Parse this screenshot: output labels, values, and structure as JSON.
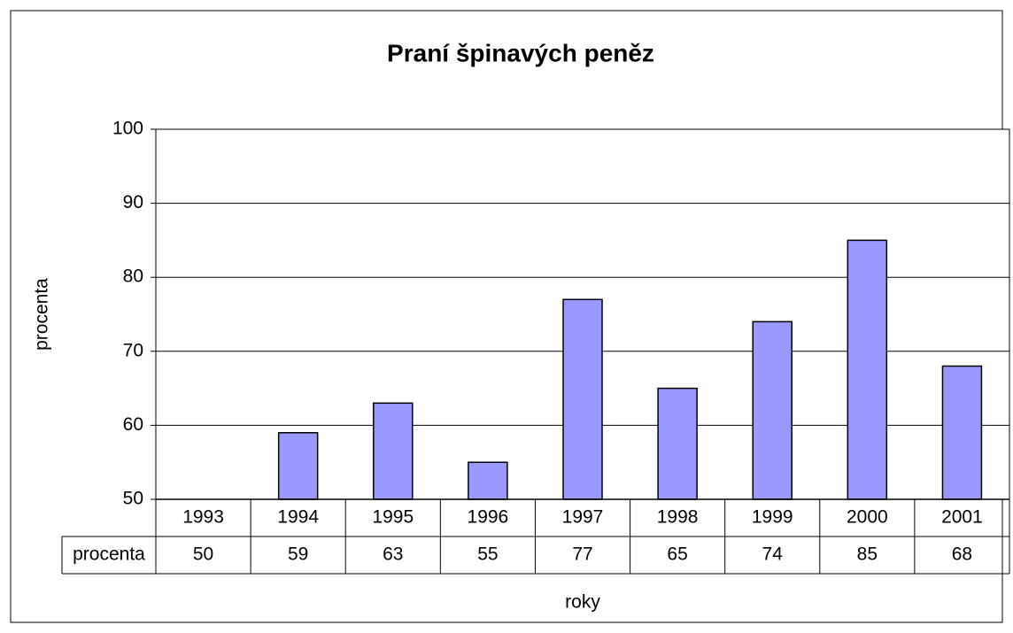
{
  "chart_data": {
    "type": "bar",
    "title": "Praní špinavých peněz",
    "x_label": "roky",
    "y_label": "procenta",
    "categories": [
      "1993",
      "1994",
      "1995",
      "1996",
      "1997",
      "1998",
      "1999",
      "2000",
      "2001"
    ],
    "series": [
      {
        "name": "procenta",
        "color": "#9999ff",
        "values": [
          50,
          59,
          63,
          55,
          77,
          65,
          74,
          85,
          68
        ]
      }
    ],
    "ylim": [
      50,
      100
    ],
    "yticks": [
      50,
      60,
      70,
      80,
      90,
      100
    ],
    "grid": true,
    "data_table": true
  }
}
